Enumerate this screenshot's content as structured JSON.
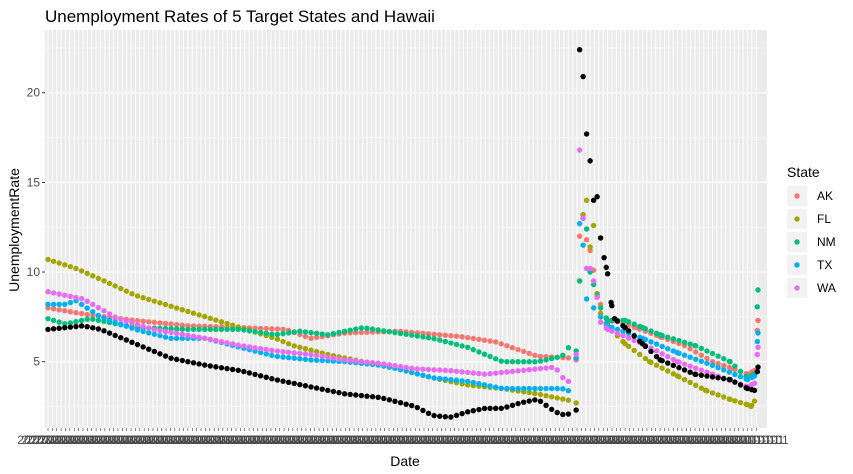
{
  "chart_data": {
    "type": "scatter",
    "title": "Unemployment Rates of 5 Target States and Hawaii",
    "xlabel": "Date",
    "ylabel": "UnemploymentRate",
    "yticks": [
      5,
      10,
      15,
      20
    ],
    "ylim": [
      1.3,
      23.5
    ],
    "grid": true,
    "legend": {
      "title": "State",
      "placement": "right",
      "entries": [
        {
          "name": "AK",
          "color": "#F8766D"
        },
        {
          "name": "FL",
          "color": "#A3A500"
        },
        {
          "name": "NM",
          "color": "#00BF7D"
        },
        {
          "name": "TX",
          "color": "#00B0F6"
        },
        {
          "name": "WA",
          "color": "#E76BF3"
        }
      ]
    },
    "x_count": 163,
    "series": [
      {
        "name": "AK",
        "color": "#F8766D",
        "anchors": [
          [
            0,
            8.0
          ],
          [
            12,
            7.6
          ],
          [
            25,
            7.3
          ],
          [
            40,
            7.0
          ],
          [
            55,
            6.9
          ],
          [
            68,
            6.8
          ],
          [
            75,
            6.3
          ],
          [
            85,
            6.6
          ],
          [
            100,
            6.7
          ],
          [
            118,
            6.4
          ],
          [
            128,
            6.1
          ],
          [
            140,
            5.3
          ],
          [
            150,
            5.2
          ],
          [
            151,
            5.1
          ],
          [
            152,
            12.0
          ],
          [
            153,
            13.2
          ],
          [
            154,
            11.8
          ],
          [
            155,
            11.2
          ],
          [
            156,
            10.1
          ],
          [
            157,
            8.6
          ],
          [
            158,
            8.2
          ],
          [
            160,
            7.2
          ],
          [
            162,
            7.3
          ],
          [
            168,
            6.9
          ],
          [
            175,
            6.4
          ],
          [
            182,
            5.9
          ],
          [
            190,
            5.0
          ],
          [
            196,
            4.6
          ],
          [
            200,
            4.3
          ],
          [
            202,
            4.5
          ],
          [
            203,
            7.3
          ]
        ]
      },
      {
        "name": "FL",
        "color": "#A3A500",
        "anchors": [
          [
            0,
            10.7
          ],
          [
            8,
            10.2
          ],
          [
            15,
            9.6
          ],
          [
            25,
            8.7
          ],
          [
            40,
            7.8
          ],
          [
            55,
            6.9
          ],
          [
            65,
            6.3
          ],
          [
            70,
            5.9
          ],
          [
            80,
            5.4
          ],
          [
            90,
            5.0
          ],
          [
            100,
            4.6
          ],
          [
            110,
            4.1
          ],
          [
            120,
            3.7
          ],
          [
            130,
            3.5
          ],
          [
            140,
            3.2
          ],
          [
            150,
            2.8
          ],
          [
            151,
            2.7
          ],
          [
            152,
            9.5
          ],
          [
            153,
            13.2
          ],
          [
            154,
            14.0
          ],
          [
            155,
            11.4
          ],
          [
            156,
            12.6
          ],
          [
            157,
            8.8
          ],
          [
            158,
            7.7
          ],
          [
            160,
            7.0
          ],
          [
            165,
            6.0
          ],
          [
            172,
            5.0
          ],
          [
            180,
            4.2
          ],
          [
            188,
            3.4
          ],
          [
            195,
            2.9
          ],
          [
            200,
            2.6
          ],
          [
            201,
            2.5
          ],
          [
            202,
            2.8
          ]
        ]
      },
      {
        "name": "NM",
        "color": "#00BF7D",
        "anchors": [
          [
            0,
            7.4
          ],
          [
            5,
            7.1
          ],
          [
            12,
            7.4
          ],
          [
            25,
            6.9
          ],
          [
            40,
            6.8
          ],
          [
            55,
            6.8
          ],
          [
            65,
            6.5
          ],
          [
            72,
            6.7
          ],
          [
            80,
            6.5
          ],
          [
            90,
            6.9
          ],
          [
            100,
            6.6
          ],
          [
            110,
            6.3
          ],
          [
            120,
            5.8
          ],
          [
            130,
            5.0
          ],
          [
            140,
            5.0
          ],
          [
            147,
            5.3
          ],
          [
            150,
            6.1
          ],
          [
            151,
            5.6
          ],
          [
            152,
            9.5
          ],
          [
            153,
            13.0
          ],
          [
            154,
            12.4
          ],
          [
            155,
            10.0
          ],
          [
            156,
            9.3
          ],
          [
            157,
            8.7
          ],
          [
            158,
            8.0
          ],
          [
            160,
            7.3
          ],
          [
            165,
            7.3
          ],
          [
            170,
            6.9
          ],
          [
            175,
            6.5
          ],
          [
            185,
            5.9
          ],
          [
            195,
            5.0
          ],
          [
            200,
            4.1
          ],
          [
            202,
            4.3
          ],
          [
            203,
            9.0
          ]
        ]
      },
      {
        "name": "TX",
        "color": "#00B0F6",
        "anchors": [
          [
            0,
            8.2
          ],
          [
            5,
            8.2
          ],
          [
            8,
            8.4
          ],
          [
            15,
            7.5
          ],
          [
            25,
            6.8
          ],
          [
            35,
            6.3
          ],
          [
            45,
            6.3
          ],
          [
            55,
            5.8
          ],
          [
            65,
            5.3
          ],
          [
            75,
            5.1
          ],
          [
            85,
            5.0
          ],
          [
            95,
            4.8
          ],
          [
            100,
            4.6
          ],
          [
            110,
            4.1
          ],
          [
            120,
            3.9
          ],
          [
            130,
            3.5
          ],
          [
            140,
            3.5
          ],
          [
            147,
            3.5
          ],
          [
            150,
            3.3
          ],
          [
            151,
            5.2
          ],
          [
            152,
            12.7
          ],
          [
            153,
            11.5
          ],
          [
            154,
            8.5
          ],
          [
            156,
            8.0
          ],
          [
            158,
            7.5
          ],
          [
            160,
            7.0
          ],
          [
            170,
            6.3
          ],
          [
            180,
            5.5
          ],
          [
            190,
            4.8
          ],
          [
            200,
            4.0
          ],
          [
            202,
            4.2
          ],
          [
            203,
            6.6
          ]
        ]
      },
      {
        "name": "WA",
        "color": "#E76BF3",
        "anchors": [
          [
            0,
            8.9
          ],
          [
            10,
            8.5
          ],
          [
            20,
            7.4
          ],
          [
            30,
            6.8
          ],
          [
            45,
            6.3
          ],
          [
            55,
            5.9
          ],
          [
            65,
            5.6
          ],
          [
            75,
            5.4
          ],
          [
            85,
            5.1
          ],
          [
            95,
            4.9
          ],
          [
            105,
            4.6
          ],
          [
            115,
            4.5
          ],
          [
            125,
            4.3
          ],
          [
            135,
            4.5
          ],
          [
            140,
            4.6
          ],
          [
            145,
            4.7
          ],
          [
            148,
            3.9
          ],
          [
            150,
            3.9
          ],
          [
            151,
            5.4
          ],
          [
            152,
            16.8
          ],
          [
            153,
            13.0
          ],
          [
            154,
            10.2
          ],
          [
            155,
            10.2
          ],
          [
            156,
            9.5
          ],
          [
            157,
            8.6
          ],
          [
            158,
            7.2
          ],
          [
            160,
            6.8
          ],
          [
            170,
            6.0
          ],
          [
            180,
            5.0
          ],
          [
            190,
            4.3
          ],
          [
            200,
            3.6
          ],
          [
            202,
            3.8
          ],
          [
            203,
            5.8
          ]
        ]
      },
      {
        "name": "",
        "color": "#000000",
        "anchors": [
          [
            0,
            6.8
          ],
          [
            5,
            6.9
          ],
          [
            10,
            7.0
          ],
          [
            15,
            6.8
          ],
          [
            25,
            6.0
          ],
          [
            35,
            5.2
          ],
          [
            45,
            4.8
          ],
          [
            55,
            4.5
          ],
          [
            65,
            4.0
          ],
          [
            75,
            3.6
          ],
          [
            85,
            3.2
          ],
          [
            95,
            3.0
          ],
          [
            105,
            2.5
          ],
          [
            110,
            2.0
          ],
          [
            115,
            1.9
          ],
          [
            120,
            2.2
          ],
          [
            125,
            2.4
          ],
          [
            130,
            2.4
          ],
          [
            135,
            2.7
          ],
          [
            140,
            2.9
          ],
          [
            145,
            2.2
          ],
          [
            148,
            2.0
          ],
          [
            150,
            2.2
          ],
          [
            151,
            2.3
          ],
          [
            152,
            22.4
          ],
          [
            153,
            20.9
          ],
          [
            154,
            17.7
          ],
          [
            155,
            16.2
          ],
          [
            156,
            14.0
          ],
          [
            157,
            14.2
          ],
          [
            158,
            11.9
          ],
          [
            159,
            10.8
          ],
          [
            160,
            9.9
          ],
          [
            161,
            8.3
          ],
          [
            162,
            7.4
          ],
          [
            165,
            6.9
          ],
          [
            170,
            6.0
          ],
          [
            175,
            5.1
          ],
          [
            185,
            4.3
          ],
          [
            195,
            4.0
          ],
          [
            200,
            3.5
          ],
          [
            202,
            3.4
          ],
          [
            203,
            4.7
          ]
        ]
      }
    ],
    "x_tick_label_overlap_sample": [
      "2",
      "2",
      "2",
      "2",
      "2",
      "2",
      "2",
      "2",
      "2",
      "2",
      "0",
      "0",
      "1",
      "2",
      "1"
    ]
  }
}
